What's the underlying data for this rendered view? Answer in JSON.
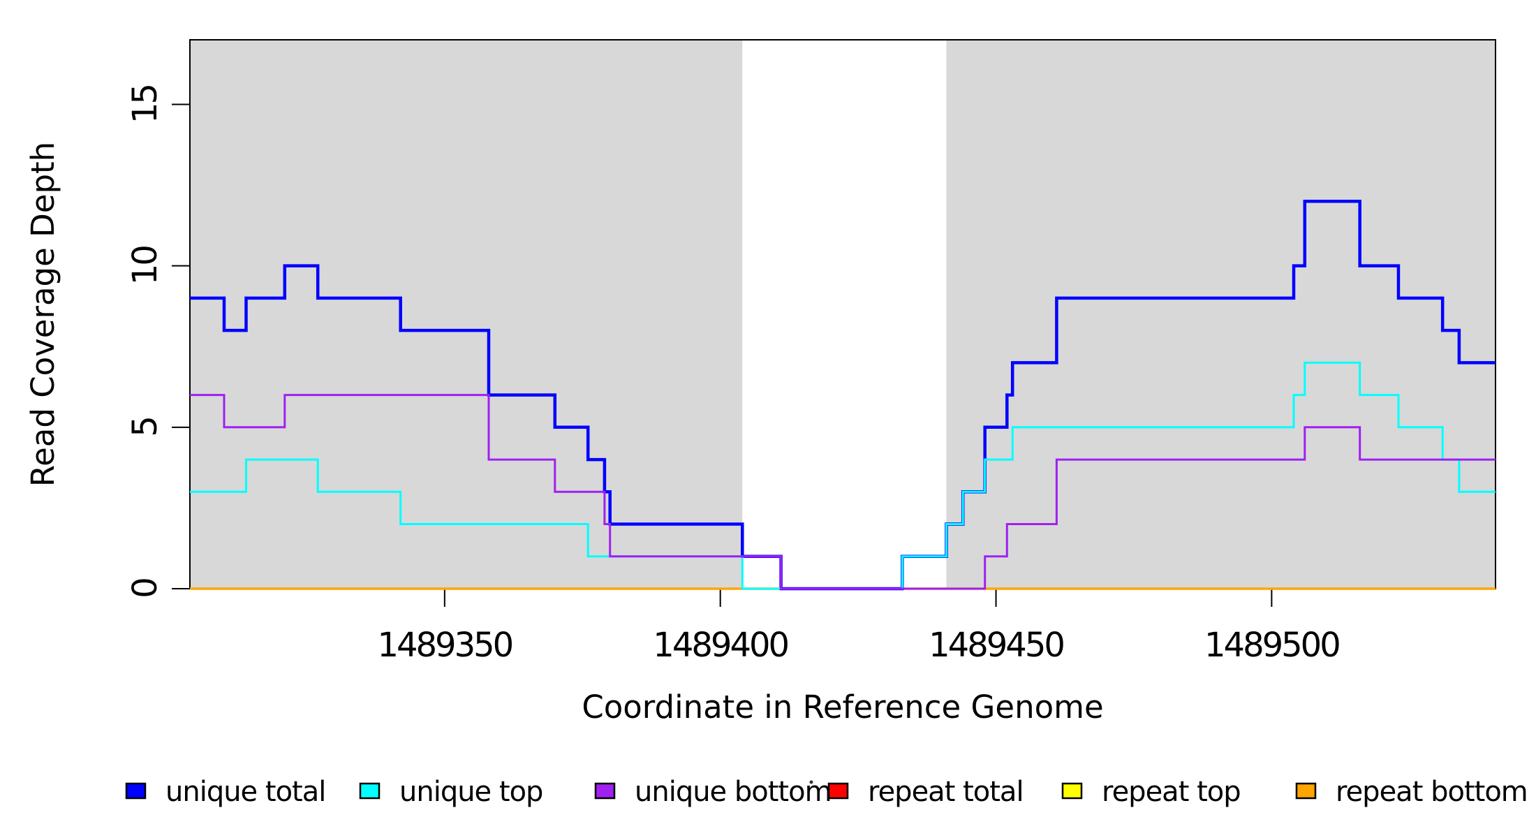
{
  "chart_data": {
    "type": "line",
    "subtype": "step",
    "title": "",
    "xlabel": "Coordinate in Reference Genome",
    "ylabel": "Read Coverage Depth",
    "xlim": [
      1489303.8,
      1489540.6
    ],
    "ylim": [
      0,
      17
    ],
    "x_ticks": [
      1489350,
      1489400,
      1489450,
      1489500
    ],
    "y_ticks": [
      0,
      5,
      10,
      15
    ],
    "grid": false,
    "legend_position": "bottom",
    "shaded_regions": {
      "color": "#D8D8D8",
      "meaning": "unique regions",
      "ranges": [
        [
          1489303.8,
          1489404
        ],
        [
          1489441,
          1489540.6
        ]
      ]
    },
    "series": [
      {
        "name": "repeat total",
        "color": "#FF0000",
        "width": 3,
        "points": [
          [
            1489303.8,
            0
          ]
        ]
      },
      {
        "name": "repeat top",
        "color": "#FFFF00",
        "width": 3,
        "points": [
          [
            1489303.8,
            0
          ]
        ]
      },
      {
        "name": "repeat bottom",
        "color": "#FFA500",
        "width": 3.5,
        "points": [
          [
            1489303.8,
            0
          ]
        ]
      },
      {
        "name": "unique total",
        "color": "#0000FF",
        "width": 4.5,
        "points": [
          [
            1489303.8,
            9
          ],
          [
            1489310,
            8
          ],
          [
            1489314,
            9
          ],
          [
            1489321,
            10
          ],
          [
            1489327,
            9
          ],
          [
            1489342,
            8
          ],
          [
            1489358,
            6
          ],
          [
            1489370,
            5
          ],
          [
            1489376,
            4
          ],
          [
            1489379,
            3
          ],
          [
            1489380,
            2
          ],
          [
            1489404,
            1
          ],
          [
            1489411,
            0
          ],
          [
            1489433,
            1
          ],
          [
            1489441,
            2
          ],
          [
            1489444,
            3
          ],
          [
            1489448,
            5
          ],
          [
            1489452,
            6
          ],
          [
            1489453,
            7
          ],
          [
            1489461,
            9
          ],
          [
            1489504,
            10
          ],
          [
            1489506,
            12
          ],
          [
            1489516,
            10
          ],
          [
            1489523,
            9
          ],
          [
            1489531,
            8
          ],
          [
            1489534,
            7
          ]
        ]
      },
      {
        "name": "unique top",
        "color": "#00FFFF",
        "width": 3,
        "points": [
          [
            1489303.8,
            3
          ],
          [
            1489314,
            4
          ],
          [
            1489327,
            3
          ],
          [
            1489342,
            2
          ],
          [
            1489376,
            1
          ],
          [
            1489404,
            0
          ],
          [
            1489433,
            1
          ],
          [
            1489441,
            2
          ],
          [
            1489444,
            3
          ],
          [
            1489448,
            4
          ],
          [
            1489453,
            5
          ],
          [
            1489504,
            6
          ],
          [
            1489506,
            7
          ],
          [
            1489516,
            6
          ],
          [
            1489523,
            5
          ],
          [
            1489531,
            4
          ],
          [
            1489534,
            3
          ]
        ]
      },
      {
        "name": "unique bottom",
        "color": "#A020F0",
        "width": 3,
        "points": [
          [
            1489303.8,
            6
          ],
          [
            1489310,
            5
          ],
          [
            1489321,
            6
          ],
          [
            1489358,
            4
          ],
          [
            1489370,
            3
          ],
          [
            1489379,
            2
          ],
          [
            1489380,
            1
          ],
          [
            1489411,
            0
          ],
          [
            1489448,
            1
          ],
          [
            1489452,
            2
          ],
          [
            1489461,
            4
          ],
          [
            1489506,
            5
          ],
          [
            1489516,
            4
          ]
        ]
      }
    ],
    "legend": [
      {
        "label": "unique total",
        "color": "#0000FF"
      },
      {
        "label": "unique top",
        "color": "#00FFFF"
      },
      {
        "label": "unique bottom",
        "color": "#A020F0"
      },
      {
        "label": "repeat total",
        "color": "#FF0000"
      },
      {
        "label": "repeat top",
        "color": "#FFFF00"
      },
      {
        "label": "repeat bottom",
        "color": "#FFA500"
      }
    ]
  }
}
